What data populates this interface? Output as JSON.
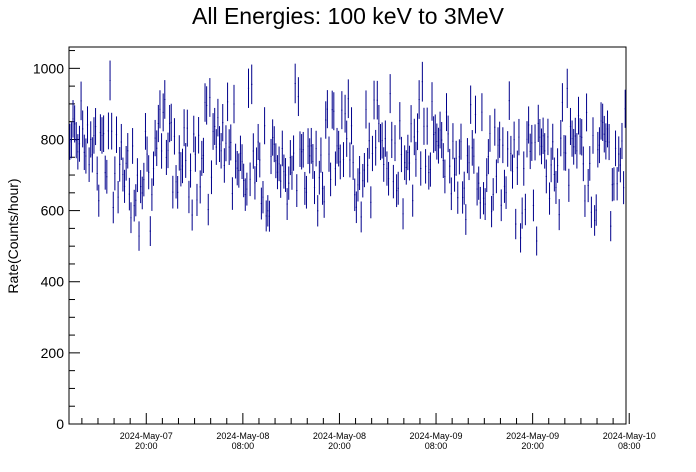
{
  "chart_data": {
    "type": "scatter",
    "style": "error-bars",
    "title": "All Energies:  100 keV to 3MeV",
    "xlabel": "",
    "ylabel": "Rate(Counts/hour)",
    "ylim": [
      0,
      1060
    ],
    "y_ticks": [
      0,
      200,
      400,
      600,
      800,
      1000
    ],
    "x_tick_labels": [
      {
        "date": "2024-May-07",
        "time": "20:00"
      },
      {
        "date": "2024-May-08",
        "time": "08:00"
      },
      {
        "date": "2024-May-08",
        "time": "20:00"
      },
      {
        "date": "2024-May-09",
        "time": "08:00"
      },
      {
        "date": "2024-May-09",
        "time": "20:00"
      },
      {
        "date": "2024-May-10",
        "time": "08:00"
      }
    ],
    "x_range_hours_from_first_label": [
      -9.6,
      59.6
    ],
    "grid": false,
    "legend": "none",
    "series_color": "#00008b",
    "series": [
      {
        "summary": "hourly-binned rates fluctuating around ~750 counts/hour",
        "points": [
          {
            "x_hours_from_first_label": -9.0,
            "y": 850
          },
          {
            "x_hours_from_first_label": -3.0,
            "y": 720
          },
          {
            "x_hours_from_first_label": 4.0,
            "y": 760
          },
          {
            "x_hours_from_first_label": 10.0,
            "y": 800
          },
          {
            "x_hours_from_first_label": 16.0,
            "y": 740
          },
          {
            "x_hours_from_first_label": 23.0,
            "y": 780
          },
          {
            "x_hours_from_first_label": 29.0,
            "y": 760
          },
          {
            "x_hours_from_first_label": 35.0,
            "y": 790
          },
          {
            "x_hours_from_first_label": 41.0,
            "y": 730
          },
          {
            "x_hours_from_first_label": 47.0,
            "y": 700
          },
          {
            "x_hours_from_first_label": 53.0,
            "y": 780
          },
          {
            "x_hours_from_first_label": 59.0,
            "y": 740
          }
        ]
      }
    ]
  }
}
